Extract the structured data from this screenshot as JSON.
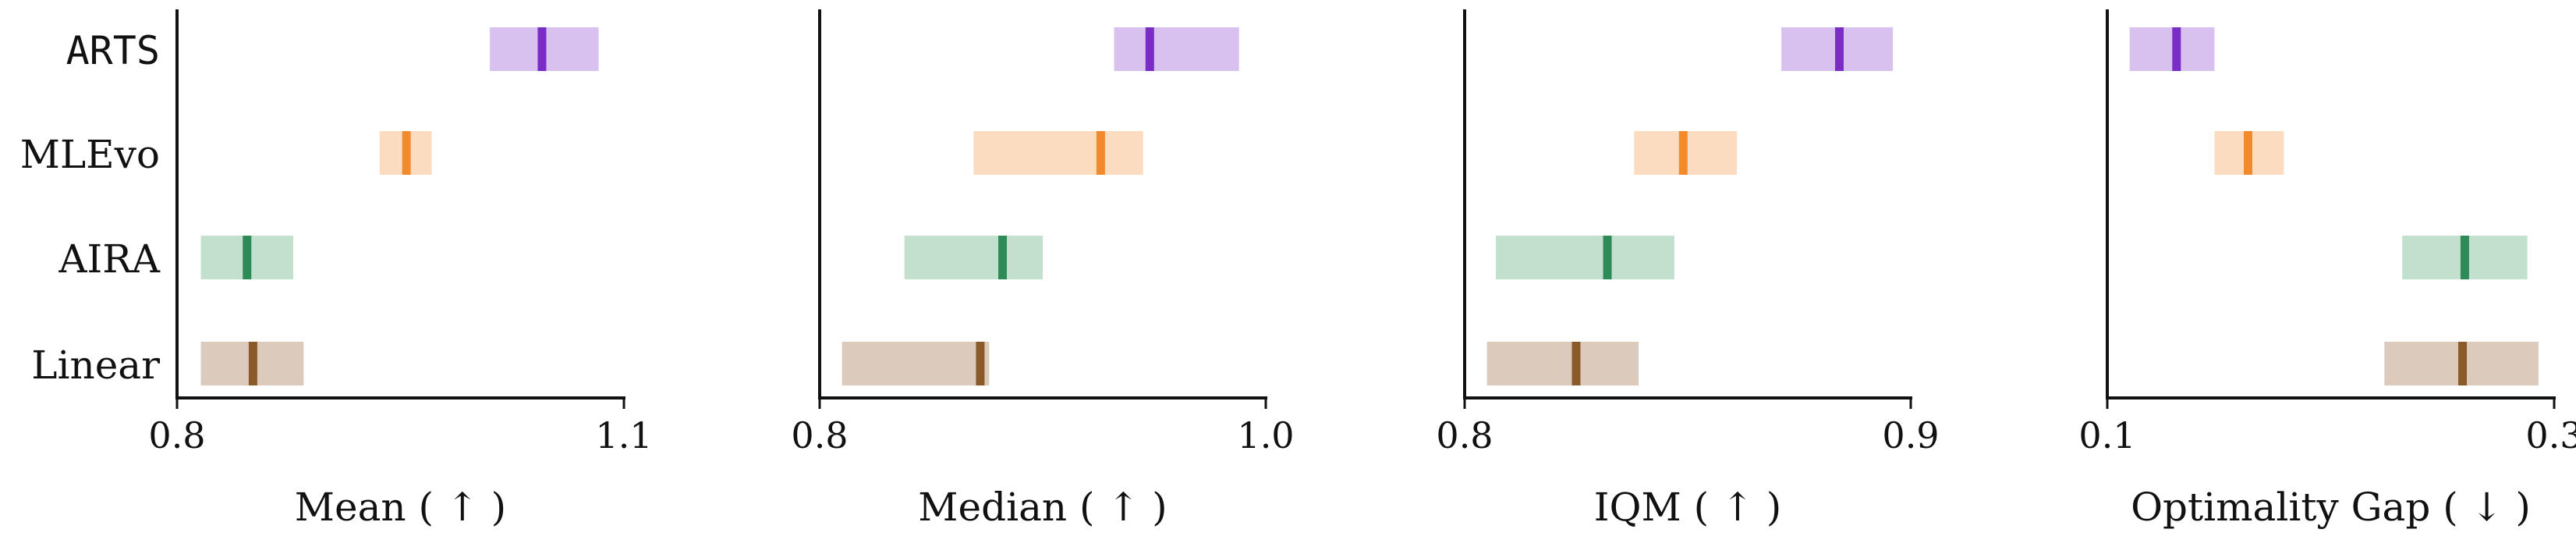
{
  "chart_data": {
    "type": "interval",
    "methods": [
      "ARTS",
      "MLEvo",
      "AIRA",
      "Linear"
    ],
    "method_colors": {
      "ARTS": {
        "fill": "#d8c1ee",
        "line": "#7a2cc7"
      },
      "MLEvo": {
        "fill": "#fcdcc0",
        "line": "#f08a2c"
      },
      "AIRA": {
        "fill": "#c3e0cf",
        "line": "#2e8b57"
      },
      "Linear": {
        "fill": "#dccbbd",
        "line": "#8b5a2b"
      }
    },
    "panels": [
      {
        "metric": "Mean",
        "arrow": "↑",
        "xlabel": "Mean ( ↑ )",
        "xlim": [
          0.8,
          1.1
        ],
        "xticks": [
          "0.8",
          "1.1"
        ],
        "estimates": [
          {
            "method": "ARTS",
            "low": 1.01,
            "point": 1.045,
            "high": 1.083
          },
          {
            "method": "MLEvo",
            "low": 0.936,
            "point": 0.954,
            "high": 0.971
          },
          {
            "method": "AIRA",
            "low": 0.816,
            "point": 0.847,
            "high": 0.878
          },
          {
            "method": "Linear",
            "low": 0.816,
            "point": 0.851,
            "high": 0.885
          }
        ]
      },
      {
        "metric": "Median",
        "arrow": "↑",
        "xlabel": "Median ( ↑ )",
        "xlim": [
          0.8,
          1.0
        ],
        "xticks": [
          "0.8",
          "1.0"
        ],
        "estimates": [
          {
            "method": "ARTS",
            "low": 0.932,
            "point": 0.948,
            "high": 0.988
          },
          {
            "method": "MLEvo",
            "low": 0.869,
            "point": 0.926,
            "high": 0.945
          },
          {
            "method": "AIRA",
            "low": 0.838,
            "point": 0.882,
            "high": 0.9
          },
          {
            "method": "Linear",
            "low": 0.81,
            "point": 0.872,
            "high": 0.876
          }
        ]
      },
      {
        "metric": "IQM",
        "arrow": "↑",
        "xlabel": "IQM ( ↑ )",
        "xlim": [
          0.8,
          0.9
        ],
        "xticks": [
          "0.8",
          "0.9"
        ],
        "estimates": [
          {
            "method": "ARTS",
            "low": 0.871,
            "point": 0.884,
            "high": 0.896
          },
          {
            "method": "MLEvo",
            "low": 0.838,
            "point": 0.849,
            "high": 0.861
          },
          {
            "method": "AIRA",
            "low": 0.807,
            "point": 0.832,
            "high": 0.847
          },
          {
            "method": "Linear",
            "low": 0.805,
            "point": 0.825,
            "high": 0.839
          }
        ]
      },
      {
        "metric": "Optimality Gap",
        "arrow": "↓",
        "xlabel": "Optimality Gap ( ↓ )",
        "xlim": [
          0.1,
          0.3
        ],
        "xticks": [
          "0.1",
          "0.3"
        ],
        "estimates": [
          {
            "method": "ARTS",
            "low": 0.11,
            "point": 0.131,
            "high": 0.148
          },
          {
            "method": "MLEvo",
            "low": 0.148,
            "point": 0.163,
            "high": 0.179
          },
          {
            "method": "AIRA",
            "low": 0.232,
            "point": 0.26,
            "high": 0.288
          },
          {
            "method": "Linear",
            "low": 0.224,
            "point": 0.259,
            "high": 0.293
          }
        ]
      }
    ],
    "grid": false,
    "legend": "none"
  }
}
